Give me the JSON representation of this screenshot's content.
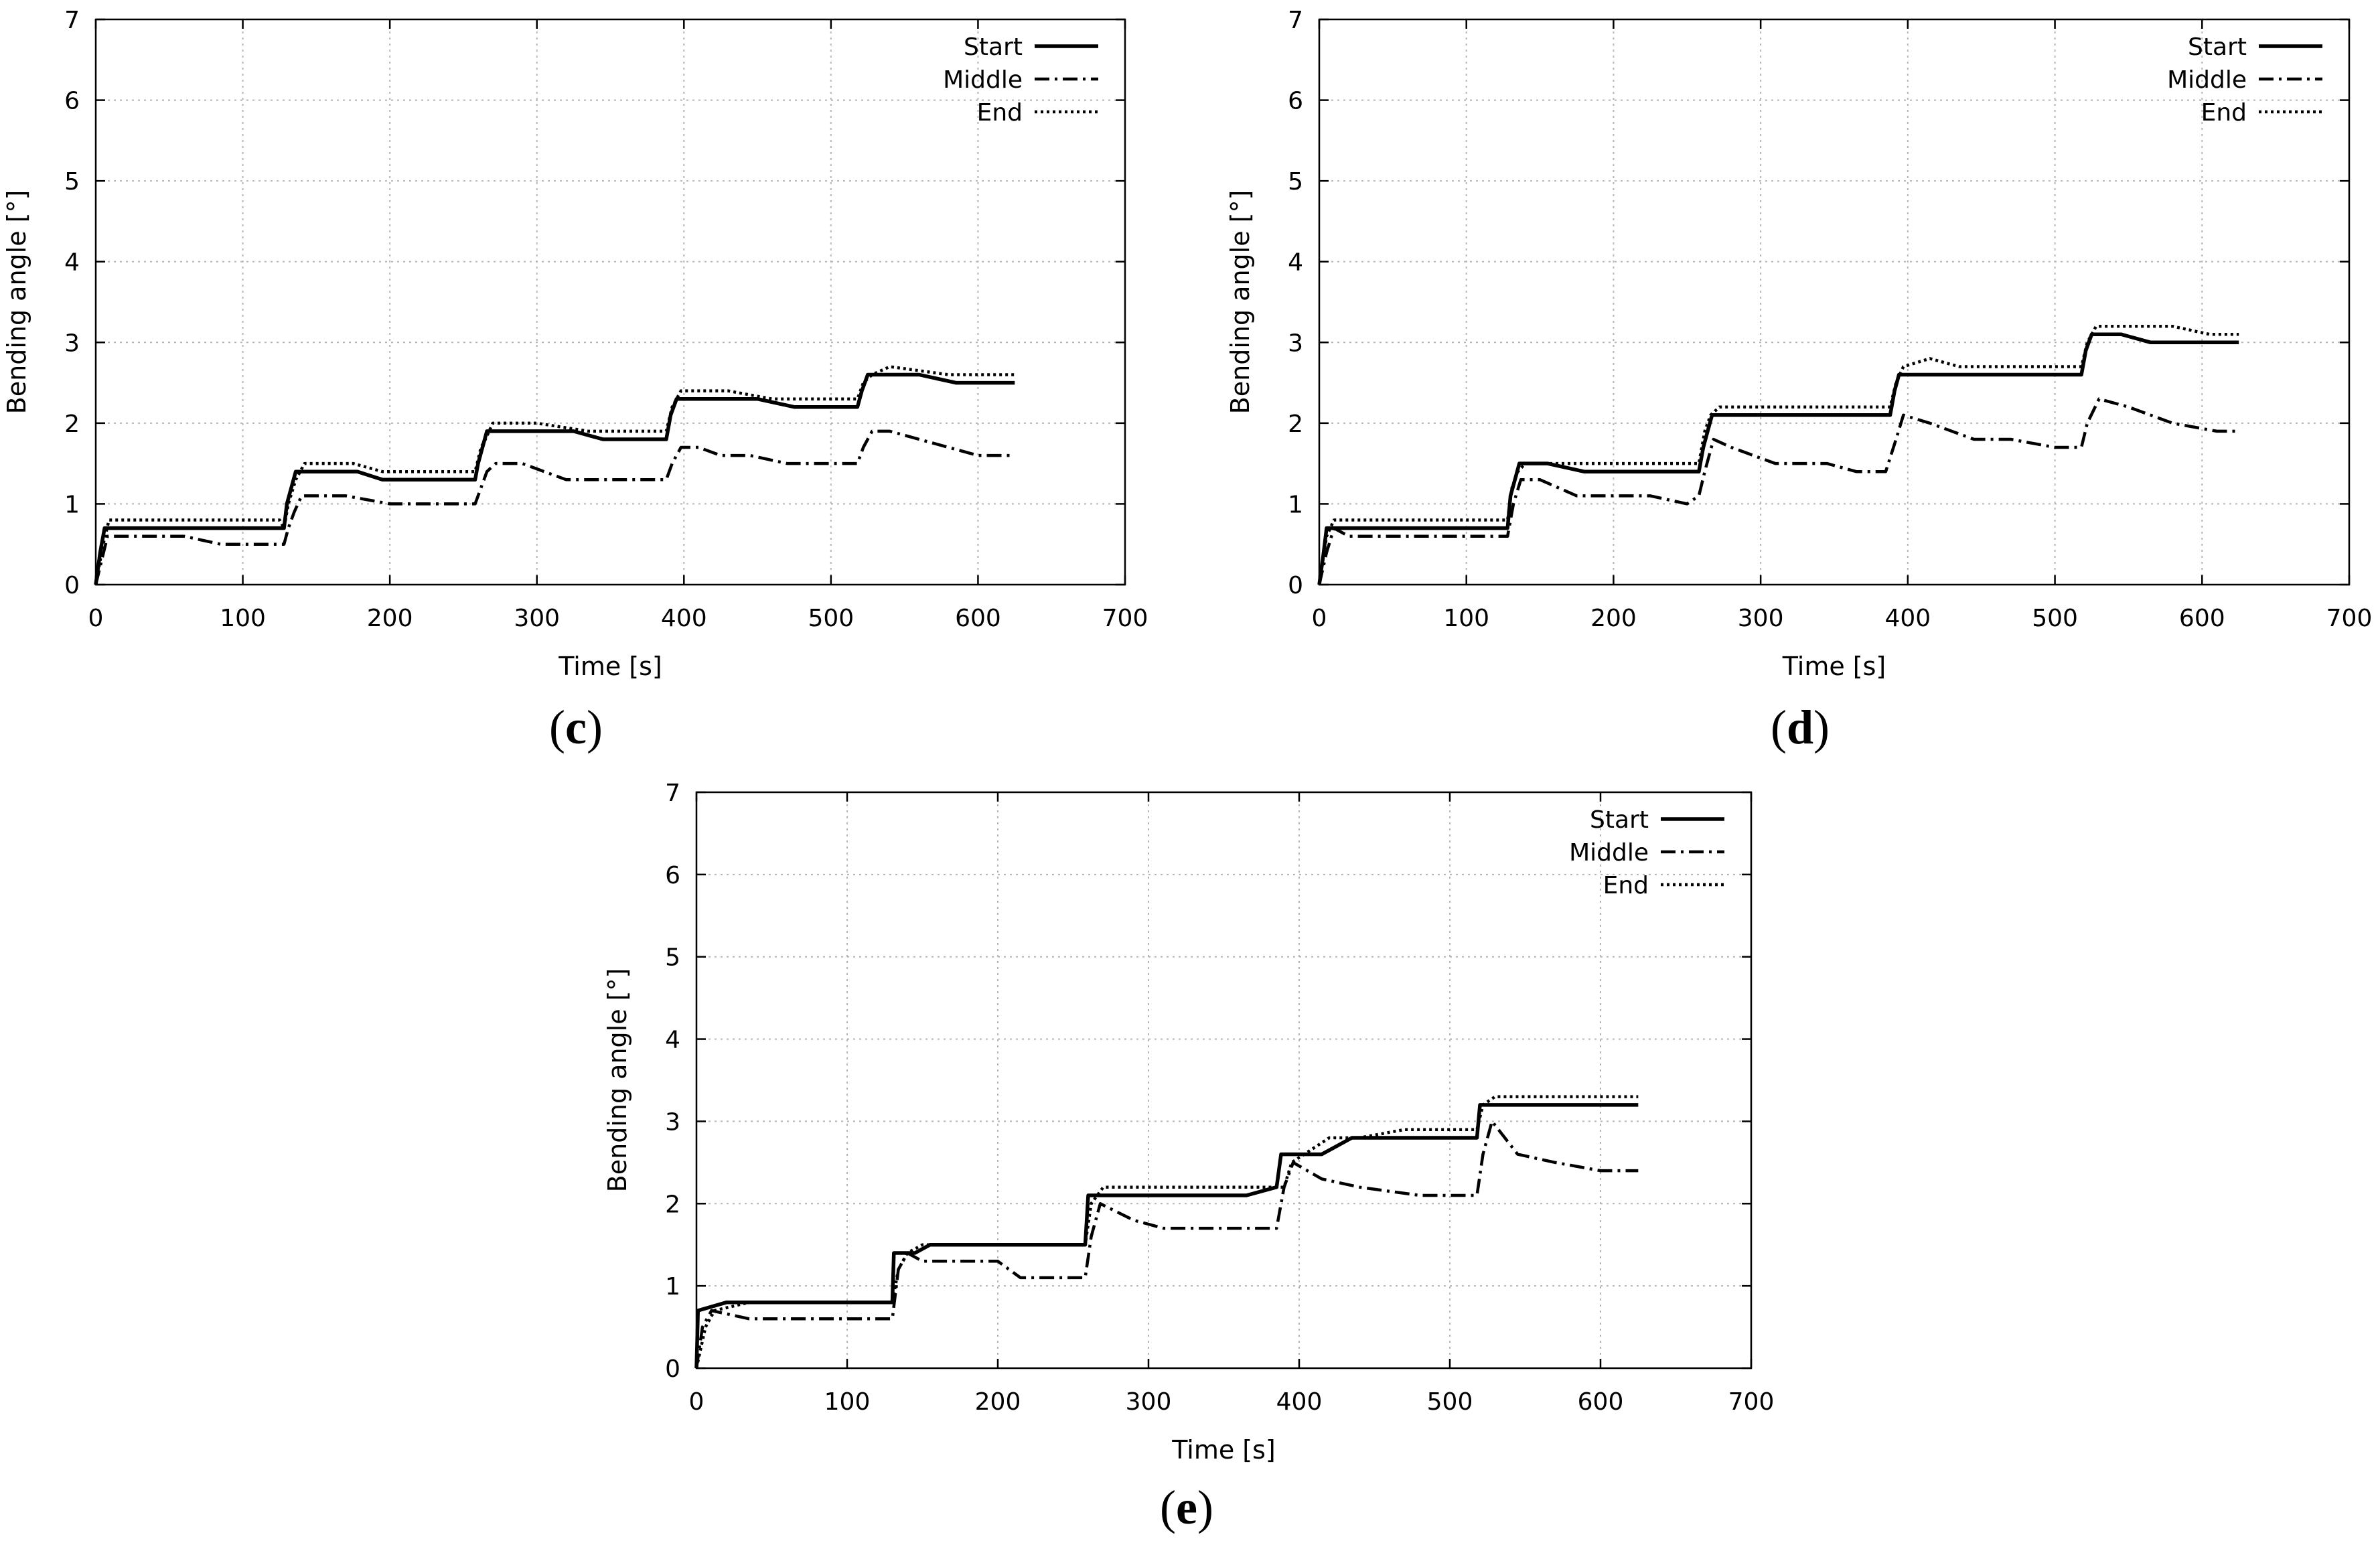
{
  "chart_data": [
    {
      "type": "line",
      "panel_label": "c",
      "xlabel": "Time [s]",
      "ylabel": "Bending angle [°]",
      "xlim": [
        0,
        700
      ],
      "ylim": [
        0,
        7
      ],
      "xticks": [
        0,
        100,
        200,
        300,
        400,
        500,
        600,
        700
      ],
      "yticks": [
        0,
        1,
        2,
        3,
        4,
        5,
        6,
        7
      ],
      "grid": true,
      "legend_position": "top-right",
      "series": [
        {
          "name": "Start",
          "style": "solid",
          "points": [
            [
              0,
              0
            ],
            [
              3,
              0.4
            ],
            [
              6,
              0.7
            ],
            [
              128,
              0.7
            ],
            [
              130,
              1.0
            ],
            [
              133,
              1.2
            ],
            [
              136,
              1.4
            ],
            [
              178,
              1.4
            ],
            [
              195,
              1.3
            ],
            [
              258,
              1.3
            ],
            [
              260,
              1.5
            ],
            [
              263,
              1.7
            ],
            [
              266,
              1.9
            ],
            [
              325,
              1.9
            ],
            [
              345,
              1.8
            ],
            [
              388,
              1.8
            ],
            [
              391,
              2.1
            ],
            [
              395,
              2.3
            ],
            [
              450,
              2.3
            ],
            [
              475,
              2.2
            ],
            [
              518,
              2.2
            ],
            [
              521,
              2.4
            ],
            [
              525,
              2.6
            ],
            [
              560,
              2.6
            ],
            [
              585,
              2.5
            ],
            [
              625,
              2.5
            ]
          ]
        },
        {
          "name": "Middle",
          "style": "dashdot",
          "points": [
            [
              0,
              0
            ],
            [
              4,
              0.3
            ],
            [
              8,
              0.6
            ],
            [
              60,
              0.6
            ],
            [
              85,
              0.5
            ],
            [
              128,
              0.5
            ],
            [
              131,
              0.7
            ],
            [
              135,
              0.9
            ],
            [
              140,
              1.1
            ],
            [
              170,
              1.1
            ],
            [
              200,
              1.0
            ],
            [
              258,
              1.0
            ],
            [
              262,
              1.2
            ],
            [
              266,
              1.4
            ],
            [
              272,
              1.5
            ],
            [
              290,
              1.5
            ],
            [
              320,
              1.3
            ],
            [
              388,
              1.3
            ],
            [
              392,
              1.5
            ],
            [
              398,
              1.7
            ],
            [
              410,
              1.7
            ],
            [
              425,
              1.6
            ],
            [
              445,
              1.6
            ],
            [
              470,
              1.5
            ],
            [
              518,
              1.5
            ],
            [
              522,
              1.7
            ],
            [
              528,
              1.9
            ],
            [
              540,
              1.9
            ],
            [
              560,
              1.8
            ],
            [
              600,
              1.6
            ],
            [
              625,
              1.6
            ]
          ]
        },
        {
          "name": "End",
          "style": "dotted",
          "points": [
            [
              0,
              0
            ],
            [
              5,
              0.5
            ],
            [
              9,
              0.8
            ],
            [
              125,
              0.8
            ],
            [
              128,
              0.7
            ],
            [
              131,
              1.0
            ],
            [
              136,
              1.3
            ],
            [
              142,
              1.5
            ],
            [
              175,
              1.5
            ],
            [
              195,
              1.4
            ],
            [
              258,
              1.4
            ],
            [
              262,
              1.7
            ],
            [
              265,
              1.8
            ],
            [
              270,
              2.0
            ],
            [
              300,
              2.0
            ],
            [
              335,
              1.9
            ],
            [
              388,
              1.9
            ],
            [
              392,
              2.2
            ],
            [
              398,
              2.4
            ],
            [
              430,
              2.4
            ],
            [
              460,
              2.3
            ],
            [
              518,
              2.3
            ],
            [
              522,
              2.5
            ],
            [
              528,
              2.6
            ],
            [
              540,
              2.7
            ],
            [
              580,
              2.6
            ],
            [
              625,
              2.6
            ]
          ]
        }
      ]
    },
    {
      "type": "line",
      "panel_label": "d",
      "xlabel": "Time [s]",
      "ylabel": "Bending angle [°]",
      "xlim": [
        0,
        700
      ],
      "ylim": [
        0,
        7
      ],
      "xticks": [
        0,
        100,
        200,
        300,
        400,
        500,
        600,
        700
      ],
      "yticks": [
        0,
        1,
        2,
        3,
        4,
        5,
        6,
        7
      ],
      "grid": true,
      "legend_position": "top-right",
      "series": [
        {
          "name": "Start",
          "style": "solid",
          "points": [
            [
              0,
              0
            ],
            [
              3,
              0.4
            ],
            [
              5,
              0.7
            ],
            [
              128,
              0.7
            ],
            [
              130,
              1.1
            ],
            [
              133,
              1.3
            ],
            [
              136,
              1.5
            ],
            [
              155,
              1.5
            ],
            [
              180,
              1.4
            ],
            [
              258,
              1.4
            ],
            [
              261,
              1.7
            ],
            [
              264,
              1.9
            ],
            [
              267,
              2.1
            ],
            [
              388,
              2.1
            ],
            [
              391,
              2.4
            ],
            [
              394,
              2.6
            ],
            [
              518,
              2.6
            ],
            [
              521,
              2.9
            ],
            [
              525,
              3.1
            ],
            [
              545,
              3.1
            ],
            [
              565,
              3.0
            ],
            [
              625,
              3.0
            ]
          ]
        },
        {
          "name": "Middle",
          "style": "dashdot",
          "points": [
            [
              0,
              0
            ],
            [
              5,
              0.4
            ],
            [
              10,
              0.7
            ],
            [
              20,
              0.6
            ],
            [
              128,
              0.6
            ],
            [
              132,
              1.0
            ],
            [
              137,
              1.3
            ],
            [
              150,
              1.3
            ],
            [
              175,
              1.1
            ],
            [
              225,
              1.1
            ],
            [
              250,
              1.0
            ],
            [
              258,
              1.1
            ],
            [
              262,
              1.4
            ],
            [
              268,
              1.8
            ],
            [
              280,
              1.7
            ],
            [
              310,
              1.5
            ],
            [
              345,
              1.5
            ],
            [
              365,
              1.4
            ],
            [
              385,
              1.4
            ],
            [
              392,
              1.8
            ],
            [
              397,
              2.1
            ],
            [
              415,
              2.0
            ],
            [
              445,
              1.8
            ],
            [
              470,
              1.8
            ],
            [
              500,
              1.7
            ],
            [
              518,
              1.7
            ],
            [
              522,
              2.0
            ],
            [
              530,
              2.3
            ],
            [
              550,
              2.2
            ],
            [
              580,
              2.0
            ],
            [
              610,
              1.9
            ],
            [
              625,
              1.9
            ]
          ]
        },
        {
          "name": "End",
          "style": "dotted",
          "points": [
            [
              0,
              0
            ],
            [
              5,
              0.6
            ],
            [
              10,
              0.8
            ],
            [
              128,
              0.8
            ],
            [
              131,
              1.2
            ],
            [
              135,
              1.4
            ],
            [
              140,
              1.5
            ],
            [
              258,
              1.5
            ],
            [
              262,
              1.9
            ],
            [
              266,
              2.1
            ],
            [
              272,
              2.2
            ],
            [
              388,
              2.2
            ],
            [
              392,
              2.5
            ],
            [
              397,
              2.7
            ],
            [
              415,
              2.8
            ],
            [
              435,
              2.7
            ],
            [
              518,
              2.7
            ],
            [
              522,
              3.0
            ],
            [
              528,
              3.2
            ],
            [
              580,
              3.2
            ],
            [
              605,
              3.1
            ],
            [
              625,
              3.1
            ]
          ]
        }
      ]
    },
    {
      "type": "line",
      "panel_label": "e",
      "xlabel": "Time [s]",
      "ylabel": "Bending angle [°]",
      "xlim": [
        0,
        700
      ],
      "ylim": [
        0,
        7
      ],
      "xticks": [
        0,
        100,
        200,
        300,
        400,
        500,
        600,
        700
      ],
      "yticks": [
        0,
        1,
        2,
        3,
        4,
        5,
        6,
        7
      ],
      "grid": true,
      "legend_position": "top-right",
      "series": [
        {
          "name": "Start",
          "style": "solid",
          "points": [
            [
              0,
              0
            ],
            [
              1,
              0.7
            ],
            [
              20,
              0.8
            ],
            [
              130,
              0.8
            ],
            [
              131,
              1.4
            ],
            [
              145,
              1.4
            ],
            [
              155,
              1.5
            ],
            [
              258,
              1.5
            ],
            [
              260,
              2.1
            ],
            [
              365,
              2.1
            ],
            [
              385,
              2.2
            ],
            [
              388,
              2.6
            ],
            [
              400,
              2.6
            ],
            [
              415,
              2.6
            ],
            [
              435,
              2.8
            ],
            [
              518,
              2.8
            ],
            [
              520,
              3.2
            ],
            [
              625,
              3.2
            ]
          ]
        },
        {
          "name": "Middle",
          "style": "dashdot",
          "points": [
            [
              0,
              0
            ],
            [
              4,
              0.5
            ],
            [
              10,
              0.7
            ],
            [
              35,
              0.6
            ],
            [
              130,
              0.6
            ],
            [
              134,
              1.2
            ],
            [
              140,
              1.4
            ],
            [
              150,
              1.3
            ],
            [
              200,
              1.3
            ],
            [
              215,
              1.1
            ],
            [
              258,
              1.1
            ],
            [
              262,
              1.6
            ],
            [
              268,
              2.0
            ],
            [
              290,
              1.8
            ],
            [
              310,
              1.7
            ],
            [
              385,
              1.7
            ],
            [
              390,
              2.2
            ],
            [
              396,
              2.5
            ],
            [
              415,
              2.3
            ],
            [
              440,
              2.2
            ],
            [
              480,
              2.1
            ],
            [
              518,
              2.1
            ],
            [
              522,
              2.6
            ],
            [
              528,
              3.0
            ],
            [
              545,
              2.6
            ],
            [
              570,
              2.5
            ],
            [
              600,
              2.4
            ],
            [
              625,
              2.4
            ]
          ]
        },
        {
          "name": "End",
          "style": "dotted",
          "points": [
            [
              0,
              0
            ],
            [
              6,
              0.5
            ],
            [
              12,
              0.7
            ],
            [
              35,
              0.8
            ],
            [
              130,
              0.8
            ],
            [
              134,
              1.2
            ],
            [
              140,
              1.4
            ],
            [
              150,
              1.5
            ],
            [
              258,
              1.5
            ],
            [
              262,
              2.0
            ],
            [
              270,
              2.2
            ],
            [
              390,
              2.2
            ],
            [
              395,
              2.5
            ],
            [
              420,
              2.8
            ],
            [
              440,
              2.8
            ],
            [
              470,
              2.9
            ],
            [
              518,
              2.9
            ],
            [
              522,
              3.2
            ],
            [
              530,
              3.3
            ],
            [
              625,
              3.3
            ]
          ]
        }
      ]
    }
  ]
}
